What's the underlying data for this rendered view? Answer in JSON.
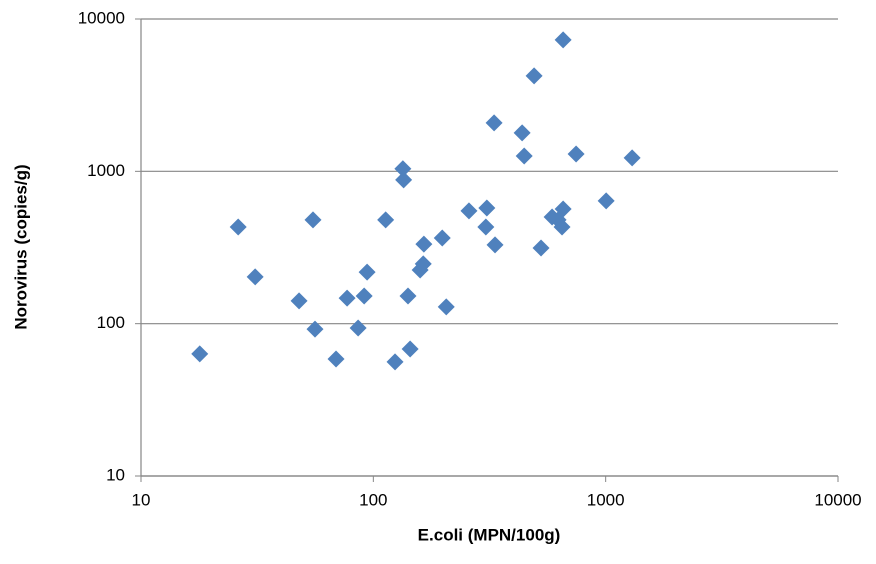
{
  "chart_data": {
    "type": "scatter",
    "x_label": "E.coli (MPN/100g)",
    "y_label": "Norovirus (copies/g)",
    "x": [
      17.9,
      26.2,
      31.0,
      47.9,
      55.0,
      56.1,
      69.1,
      77.1,
      86.0,
      91.3,
      94.0,
      113,
      124,
      134,
      135,
      141,
      144,
      159,
      164,
      165,
      198,
      206,
      258,
      305,
      308,
      331,
      334,
      437,
      446,
      492,
      527,
      588,
      624,
      649,
      656,
      656,
      746,
      1005,
      1300
    ],
    "values": [
      63.3,
      431,
      203,
      141,
      480,
      92,
      58.6,
      147,
      93.7,
      152,
      218,
      480,
      56.1,
      1040,
      879,
      152,
      68.2,
      225,
      247,
      333,
      365,
      129,
      550,
      431,
      575,
      2080,
      329,
      1790,
      1260,
      4230,
      314,
      501,
      480,
      431,
      566,
      7290,
      1300,
      640,
      1225
    ],
    "color": "#4f81bd",
    "xlim": [
      10,
      10000
    ],
    "ylim": [
      10,
      10000
    ],
    "xticks": [
      10,
      100,
      1000,
      10000
    ],
    "yticks": [
      10,
      100,
      1000,
      10000
    ],
    "xscale": "log",
    "yscale": "log",
    "grid": "y"
  }
}
